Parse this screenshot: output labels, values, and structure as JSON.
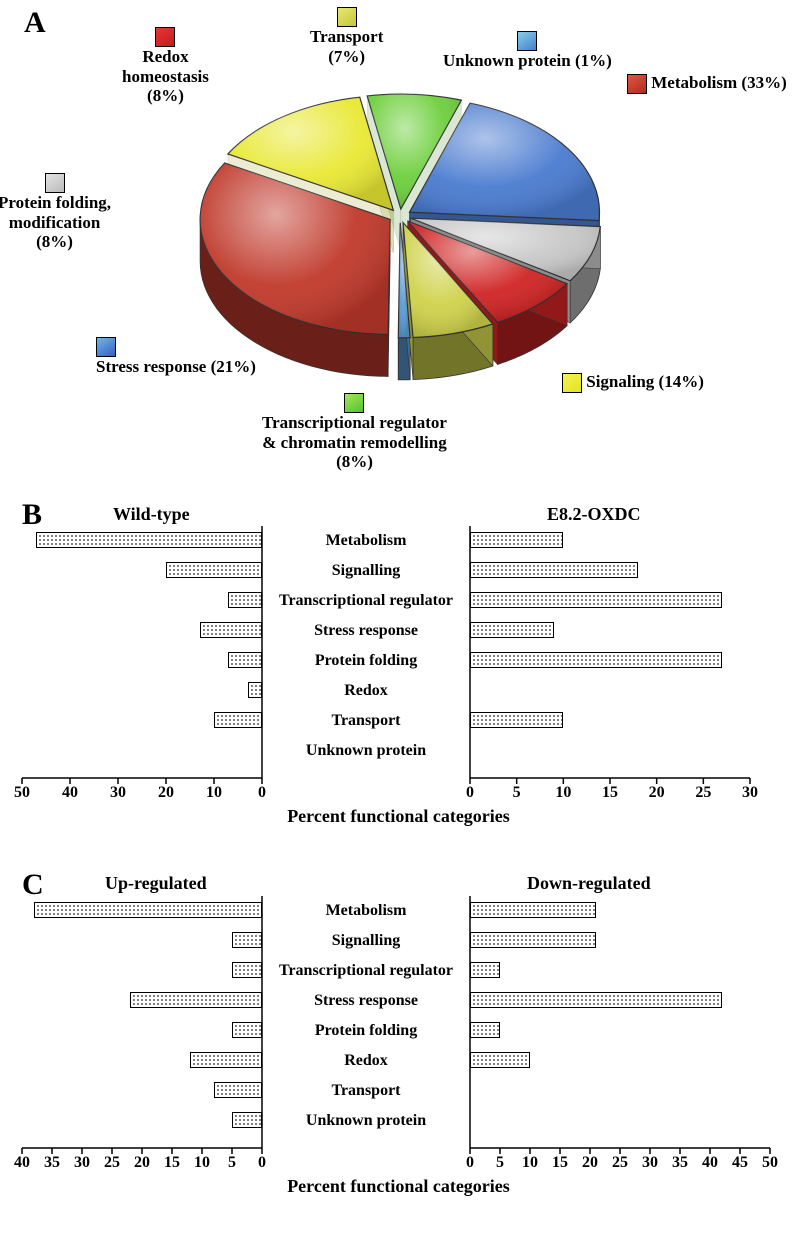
{
  "panels": {
    "A": "A",
    "B": "B",
    "C": "C"
  },
  "pie": {
    "slices": [
      {
        "name": "Unknown protein",
        "label": "Unknown protein (1%)",
        "pct": 1,
        "color": "#5a9bd4"
      },
      {
        "name": "Metabolism",
        "label": "Metabolism (33%)",
        "pct": 33,
        "color": "#c0392b"
      },
      {
        "name": "Signaling",
        "label": "Signaling (14%)",
        "pct": 14,
        "color": "#e8e833"
      },
      {
        "name": "Transcriptional regulator & chromatin remodelling",
        "label": "Transcriptional regulator\n& chromatin remodelling\n(8%)",
        "pct": 8,
        "color": "#6ecf3d"
      },
      {
        "name": "Stress response",
        "label": "Stress response (21%)",
        "pct": 21,
        "color": "#4a7bd0"
      },
      {
        "name": "Protein folding, modification",
        "label": "Protein folding,\nmodification\n(8%)",
        "pct": 8,
        "color": "#c8c8c8"
      },
      {
        "name": "Redox homeostasis",
        "label": "Redox\nhomeostasis\n(8%)",
        "pct": 8,
        "color": "#d02424"
      },
      {
        "name": "Transport",
        "label": "Transport\n(7%)",
        "pct": 7,
        "color": "#cfd24a"
      }
    ],
    "outline": "#333333",
    "explode": 0.06,
    "start_angle_deg": 87
  },
  "panelB": {
    "left_title": "Wild-type",
    "right_title": "E8.2-OXDC",
    "categories": [
      "Metabolism",
      "Signalling",
      "Transcriptional regulator",
      "Stress response",
      "Protein folding",
      "Redox",
      "Transport",
      "Unknown protein"
    ],
    "left_values": [
      47,
      20,
      7,
      13,
      7,
      3,
      10,
      0
    ],
    "right_values": [
      10,
      18,
      27,
      9,
      27,
      0,
      10,
      0
    ],
    "left_ticks": [
      50,
      40,
      30,
      20,
      10,
      0
    ],
    "right_ticks": [
      0,
      5,
      10,
      15,
      20,
      25,
      30
    ],
    "x_label": "Percent functional categories"
  },
  "panelC": {
    "left_title": "Up-regulated",
    "right_title": "Down-regulated",
    "categories": [
      "Metabolism",
      "Signalling",
      "Transcriptional regulator",
      "Stress response",
      "Protein folding",
      "Redox",
      "Transport",
      "Unknown protein"
    ],
    "left_values": [
      38,
      5,
      5,
      22,
      5,
      12,
      8,
      5
    ],
    "right_values": [
      21,
      21,
      5,
      42,
      5,
      10,
      0,
      0
    ],
    "left_ticks": [
      40,
      35,
      30,
      25,
      20,
      15,
      10,
      5,
      0
    ],
    "right_ticks": [
      0,
      5,
      10,
      15,
      20,
      25,
      30,
      35,
      40,
      45,
      50
    ],
    "x_label": "Percent functional categories"
  },
  "style": {
    "bar_fill": "#ffffff",
    "bar_border": "#000000",
    "axis_color": "#000000",
    "background": "#ffffff",
    "font": "Times New Roman",
    "cat_fontsize": 16,
    "tick_fontsize": 16,
    "title_fontsize": 18
  }
}
